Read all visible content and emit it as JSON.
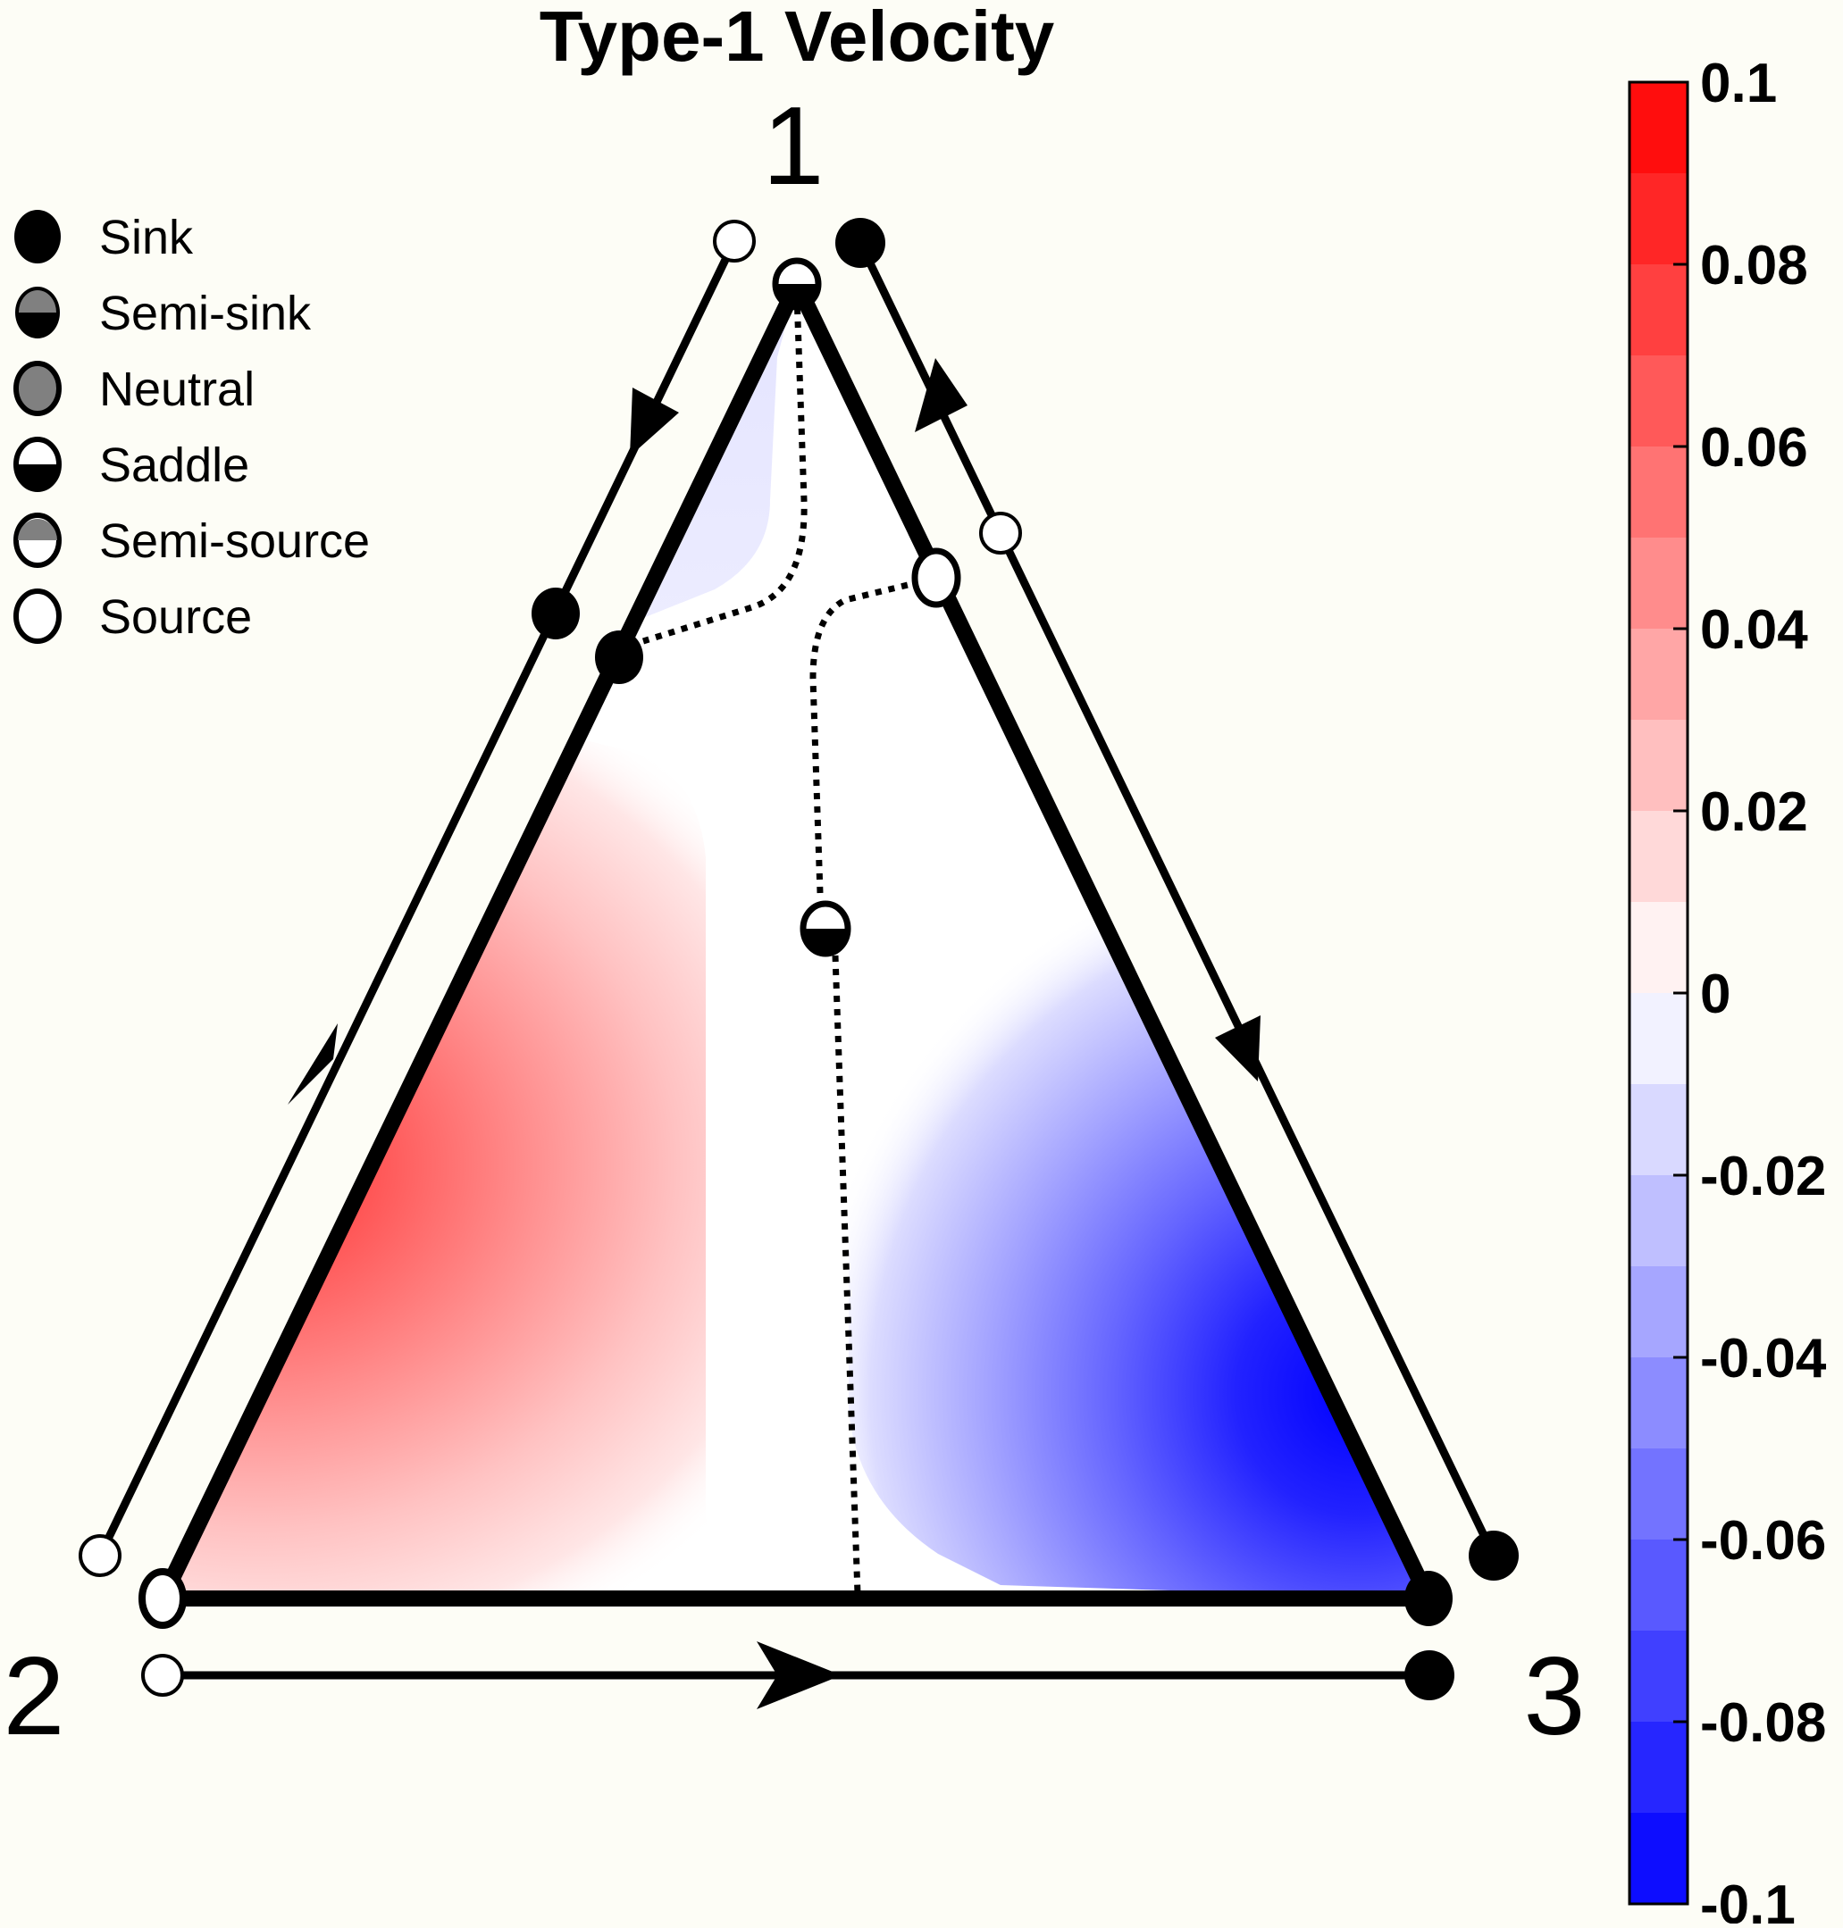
{
  "title": "Type-1 Velocity",
  "vertices": {
    "top": "1",
    "left": "2",
    "right": "3"
  },
  "legend": {
    "items": [
      {
        "label": "Sink",
        "marker": "sink"
      },
      {
        "label": "Semi-sink",
        "marker": "semi-sink"
      },
      {
        "label": "Neutral",
        "marker": "neutral"
      },
      {
        "label": "Saddle",
        "marker": "saddle"
      },
      {
        "label": "Semi-source",
        "marker": "semi-source"
      },
      {
        "label": "Source",
        "marker": "source"
      }
    ]
  },
  "colorbar": {
    "min": -0.1,
    "max": 0.1,
    "levels": 20,
    "ticks": [
      "0.1",
      "0.08",
      "0.06",
      "0.04",
      "0.02",
      "0",
      "-0.02",
      "-0.04",
      "-0.06",
      "-0.08",
      "-0.1"
    ],
    "colors": {
      "positive": "#ff0000",
      "zero": "#ffffff",
      "negative": "#0000ff"
    }
  },
  "colors": {
    "background": "#fdfdf6",
    "ink": "#000000",
    "marker_gray": "#808080"
  }
}
